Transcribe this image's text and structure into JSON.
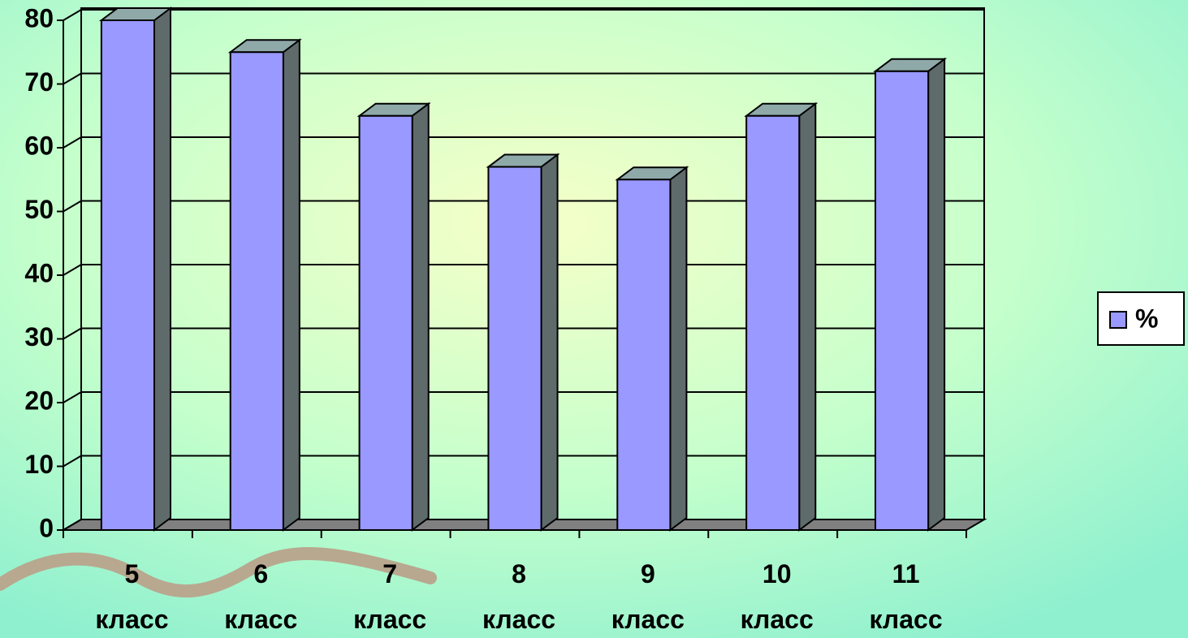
{
  "chart_data": {
    "type": "bar",
    "categories": [
      "5 класс",
      "6 класс",
      "7 класс",
      "8 класс",
      "9 класс",
      "10 класс",
      "11 класс"
    ],
    "series": [
      {
        "name": "%",
        "color": "#9999ff",
        "values": [
          80,
          75,
          65,
          57,
          55,
          65,
          72
        ]
      }
    ],
    "ylim": [
      0,
      80
    ],
    "yticks": [
      0,
      10,
      20,
      30,
      40,
      50,
      60,
      70,
      80
    ],
    "grid": true,
    "legend": "right"
  }
}
